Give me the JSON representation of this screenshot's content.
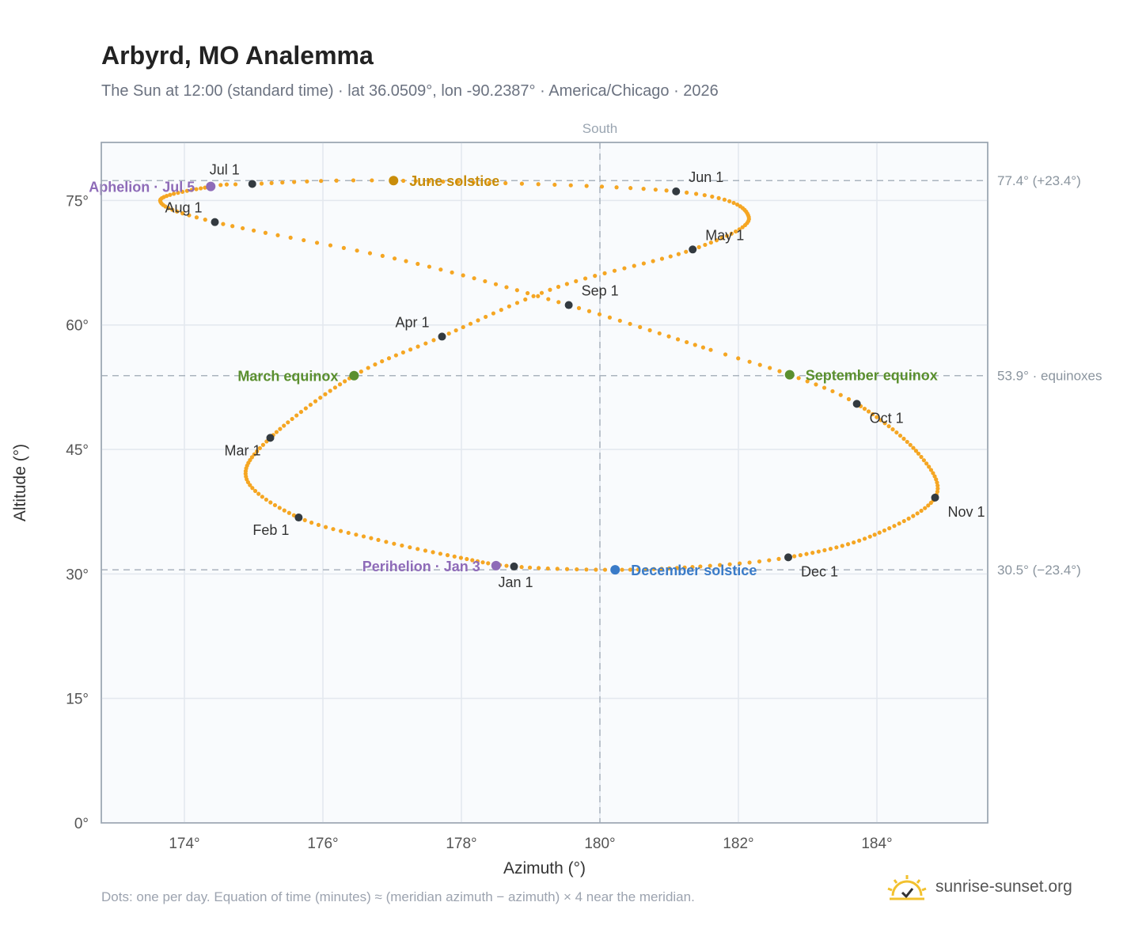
{
  "header": {
    "title": "Arbyrd, MO Analemma",
    "subtitle": "The Sun at 12:00 (standard time) · lat 36.0509°, lon -90.2387° · America/Chicago · 2026"
  },
  "footer": {
    "note": "Dots: one per day. Equation of time (minutes) ≈ (meridian azimuth − azimuth) × 4 near the meridian.",
    "brand": "sunrise-sunset.org"
  },
  "icons": {
    "brand_logo": "sun-check-icon"
  },
  "colors": {
    "curve": "#f5a623",
    "month_marker": "#333a40",
    "solstice_june": "#c98d0a",
    "solstice_december": "#3a7bc8",
    "equinox": "#5a8f2e",
    "aphelion_perihelion": "#8e6bb8",
    "reference_line": "#aab4be"
  },
  "chart_data": {
    "type": "scatter",
    "xlabel": "Azimuth (°)",
    "ylabel": "Altitude (°)",
    "xlim": [
      172.8,
      185.6
    ],
    "ylim": [
      0,
      82
    ],
    "x_ticks": [
      174,
      176,
      178,
      180,
      182,
      184
    ],
    "x_tick_labels": [
      "174°",
      "176°",
      "178°",
      "180°",
      "182°",
      "184°"
    ],
    "y_ticks": [
      0,
      15,
      30,
      45,
      60,
      75
    ],
    "y_tick_labels": [
      "0°",
      "15°",
      "30°",
      "45°",
      "60°",
      "75°"
    ],
    "grid": true,
    "meridian": {
      "x": 180,
      "label": "South"
    },
    "reference_lines": [
      {
        "y": 77.4,
        "label": "77.4° (+23.4°)"
      },
      {
        "y": 53.9,
        "label": "53.9° · equinoxes"
      },
      {
        "y": 30.5,
        "label": "30.5° (−23.4°)"
      }
    ],
    "curve_keypoints": [
      {
        "day": 0,
        "az": 178.76,
        "alt": 30.9
      },
      {
        "day": 10,
        "az": 177.9,
        "alt": 32.1
      },
      {
        "day": 20,
        "az": 176.8,
        "alt": 34.1
      },
      {
        "day": 31,
        "az": 175.65,
        "alt": 36.8
      },
      {
        "day": 45,
        "az": 174.9,
        "alt": 41.4
      },
      {
        "day": 59,
        "az": 175.24,
        "alt": 46.4
      },
      {
        "day": 78,
        "az": 176.45,
        "alt": 53.9
      },
      {
        "day": 90,
        "az": 177.72,
        "alt": 58.6
      },
      {
        "day": 105,
        "az": 179.4,
        "alt": 64.6
      },
      {
        "day": 120,
        "az": 181.34,
        "alt": 69.1
      },
      {
        "day": 135,
        "az": 182.15,
        "alt": 73.0
      },
      {
        "day": 151,
        "az": 181.1,
        "alt": 76.1
      },
      {
        "day": 171,
        "az": 177.0,
        "alt": 77.4
      },
      {
        "day": 181,
        "az": 174.98,
        "alt": 77.0
      },
      {
        "day": 185,
        "az": 174.4,
        "alt": 76.7
      },
      {
        "day": 200,
        "az": 173.65,
        "alt": 75.0
      },
      {
        "day": 212,
        "az": 174.44,
        "alt": 72.4
      },
      {
        "day": 228,
        "az": 177.2,
        "alt": 67.7
      },
      {
        "day": 243,
        "az": 179.55,
        "alt": 62.4
      },
      {
        "day": 258,
        "az": 181.6,
        "alt": 57.0
      },
      {
        "day": 265,
        "az": 182.74,
        "alt": 54.0
      },
      {
        "day": 273,
        "az": 183.71,
        "alt": 50.5
      },
      {
        "day": 290,
        "az": 184.6,
        "alt": 44.5
      },
      {
        "day": 304,
        "az": 184.84,
        "alt": 39.2
      },
      {
        "day": 320,
        "az": 183.9,
        "alt": 34.5
      },
      {
        "day": 334,
        "az": 182.72,
        "alt": 32.0
      },
      {
        "day": 343,
        "az": 181.45,
        "alt": 30.9
      },
      {
        "day": 354,
        "az": 180.2,
        "alt": 30.5
      },
      {
        "day": 365,
        "az": 178.76,
        "alt": 30.9
      }
    ],
    "month_markers": [
      {
        "label": "Jan 1",
        "az": 178.76,
        "alt": 30.9,
        "pos": "below"
      },
      {
        "label": "Feb 1",
        "az": 175.65,
        "alt": 36.8,
        "pos": "below-left"
      },
      {
        "label": "Mar 1",
        "az": 175.24,
        "alt": 46.4,
        "pos": "below-left"
      },
      {
        "label": "Apr 1",
        "az": 177.72,
        "alt": 58.6,
        "pos": "above-left"
      },
      {
        "label": "May 1",
        "az": 181.34,
        "alt": 69.1,
        "pos": "right-above"
      },
      {
        "label": "Jun 1",
        "az": 181.1,
        "alt": 76.1,
        "pos": "above-right"
      },
      {
        "label": "Jul 1",
        "az": 174.98,
        "alt": 77.0,
        "pos": "above-left"
      },
      {
        "label": "Aug 1",
        "az": 174.44,
        "alt": 72.4,
        "pos": "above-left"
      },
      {
        "label": "Sep 1",
        "az": 179.55,
        "alt": 62.4,
        "pos": "right-above"
      },
      {
        "label": "Oct 1",
        "az": 183.71,
        "alt": 50.5,
        "pos": "below-right"
      },
      {
        "label": "Nov 1",
        "az": 184.84,
        "alt": 39.2,
        "pos": "below-right"
      },
      {
        "label": "Dec 1",
        "az": 182.72,
        "alt": 32.0,
        "pos": "below-right"
      }
    ],
    "events": [
      {
        "label": "June solstice",
        "az": 177.02,
        "alt": 77.4,
        "color": "#c98d0a",
        "pos": "right"
      },
      {
        "label": "December solstice",
        "az": 180.22,
        "alt": 30.5,
        "color": "#3a7bc8",
        "pos": "right"
      },
      {
        "label": "March equinox",
        "az": 176.45,
        "alt": 53.9,
        "color": "#5a8f2e",
        "pos": "left"
      },
      {
        "label": "September equinox",
        "az": 182.74,
        "alt": 54.0,
        "color": "#5a8f2e",
        "pos": "right"
      },
      {
        "label": "Aphelion · Jul 5",
        "az": 174.38,
        "alt": 76.7,
        "color": "#8e6bb8",
        "pos": "left"
      },
      {
        "label": "Perihelion · Jan 3",
        "az": 178.5,
        "alt": 31.0,
        "color": "#8e6bb8",
        "pos": "left"
      }
    ]
  }
}
